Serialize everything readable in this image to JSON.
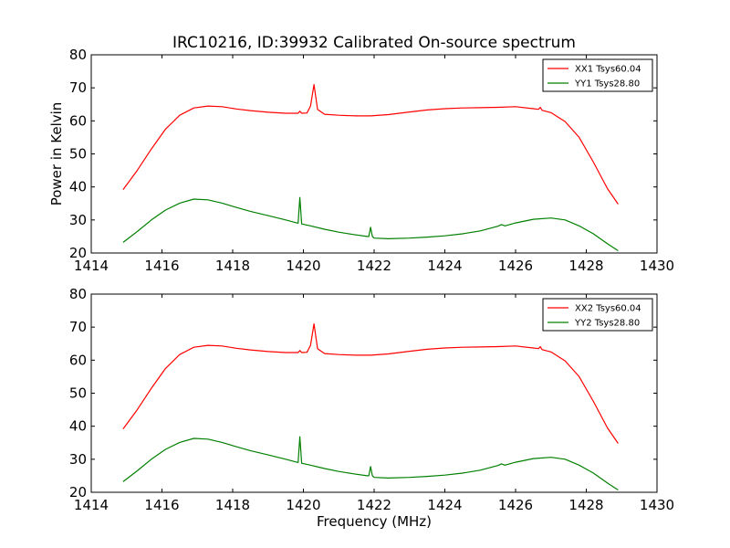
{
  "chart_data": [
    {
      "type": "line",
      "title": "IRC10216, ID:39932 Calibrated On-source spectrum",
      "xlabel": "",
      "ylabel": "Power in Kelvin",
      "xlim": [
        1414,
        1430
      ],
      "ylim": [
        20,
        80
      ],
      "xticks": [
        "1414",
        "1416",
        "1418",
        "1420",
        "1422",
        "1424",
        "1426",
        "1428",
        "1430"
      ],
      "yticks": [
        "20",
        "30",
        "40",
        "50",
        "60",
        "70",
        "80"
      ],
      "grid": false,
      "legend_position": "top-right",
      "series": [
        {
          "name": "XX1 Tsys60.04",
          "color": "#ff0000",
          "x": [
            1414.9,
            1415.3,
            1415.7,
            1416.1,
            1416.5,
            1416.9,
            1417.3,
            1417.7,
            1418.1,
            1418.5,
            1419.0,
            1419.5,
            1419.85,
            1419.9,
            1419.95,
            1420.1,
            1420.2,
            1420.3,
            1420.4,
            1420.6,
            1421.0,
            1421.5,
            1421.9,
            1422.4,
            1423.0,
            1423.5,
            1424.0,
            1424.5,
            1425.0,
            1425.5,
            1426.0,
            1426.5,
            1426.65,
            1426.7,
            1426.75,
            1427.0,
            1427.4,
            1427.8,
            1428.2,
            1428.6,
            1428.9
          ],
          "y": [
            39.2,
            45.0,
            51.5,
            57.5,
            61.7,
            63.9,
            64.5,
            64.3,
            63.6,
            63.1,
            62.6,
            62.3,
            62.3,
            62.9,
            62.3,
            62.4,
            64.5,
            71.0,
            63.5,
            62.0,
            61.7,
            61.5,
            61.5,
            61.9,
            62.7,
            63.3,
            63.7,
            63.9,
            64.0,
            64.1,
            64.3,
            63.7,
            63.5,
            64.1,
            63.2,
            62.5,
            59.8,
            55.0,
            47.5,
            39.5,
            34.8
          ]
        },
        {
          "name": "YY1 Tsys28.80",
          "color": "#008000",
          "x": [
            1414.9,
            1415.3,
            1415.7,
            1416.1,
            1416.5,
            1416.9,
            1417.3,
            1417.7,
            1418.1,
            1418.5,
            1419.0,
            1419.5,
            1419.85,
            1419.9,
            1419.95,
            1420.2,
            1420.6,
            1421.0,
            1421.4,
            1421.8,
            1421.85,
            1421.9,
            1421.95,
            1422.0,
            1422.4,
            1423.0,
            1423.5,
            1424.0,
            1424.5,
            1425.0,
            1425.5,
            1425.6,
            1425.7,
            1426.0,
            1426.5,
            1427.0,
            1427.4,
            1427.8,
            1428.2,
            1428.6,
            1428.9
          ],
          "y": [
            23.2,
            26.5,
            30.0,
            33.0,
            35.1,
            36.3,
            36.1,
            35.1,
            33.8,
            32.6,
            31.3,
            30.0,
            29.0,
            36.8,
            28.8,
            28.2,
            27.2,
            26.3,
            25.6,
            25.0,
            25.0,
            27.8,
            25.0,
            24.5,
            24.3,
            24.5,
            24.8,
            25.2,
            25.8,
            26.7,
            28.1,
            28.6,
            28.2,
            29.1,
            30.2,
            30.6,
            30.0,
            28.2,
            25.8,
            22.8,
            20.7
          ]
        }
      ]
    },
    {
      "type": "line",
      "title": "",
      "xlabel": "Frequency (MHz)",
      "ylabel": "",
      "xlim": [
        1414,
        1430
      ],
      "ylim": [
        20,
        80
      ],
      "xticks": [
        "1414",
        "1416",
        "1418",
        "1420",
        "1422",
        "1424",
        "1426",
        "1428",
        "1430"
      ],
      "yticks": [
        "20",
        "30",
        "40",
        "50",
        "60",
        "70",
        "80"
      ],
      "grid": false,
      "legend_position": "top-right",
      "series": [
        {
          "name": "XX2 Tsys60.04",
          "color": "#ff0000",
          "x": [
            1414.9,
            1415.3,
            1415.7,
            1416.1,
            1416.5,
            1416.9,
            1417.3,
            1417.7,
            1418.1,
            1418.5,
            1419.0,
            1419.5,
            1419.85,
            1419.9,
            1419.95,
            1420.1,
            1420.2,
            1420.3,
            1420.4,
            1420.6,
            1421.0,
            1421.5,
            1421.9,
            1422.4,
            1423.0,
            1423.5,
            1424.0,
            1424.5,
            1425.0,
            1425.5,
            1426.0,
            1426.5,
            1426.65,
            1426.7,
            1426.75,
            1427.0,
            1427.4,
            1427.8,
            1428.2,
            1428.6,
            1428.9
          ],
          "y": [
            39.2,
            45.0,
            51.5,
            57.5,
            61.7,
            63.9,
            64.5,
            64.3,
            63.6,
            63.1,
            62.6,
            62.3,
            62.3,
            62.9,
            62.3,
            62.4,
            64.5,
            71.0,
            63.5,
            62.0,
            61.7,
            61.5,
            61.5,
            61.9,
            62.7,
            63.3,
            63.7,
            63.9,
            64.0,
            64.1,
            64.3,
            63.7,
            63.5,
            64.1,
            63.2,
            62.5,
            59.8,
            55.0,
            47.5,
            39.5,
            34.8
          ]
        },
        {
          "name": "YY2 Tsys28.80",
          "color": "#008000",
          "x": [
            1414.9,
            1415.3,
            1415.7,
            1416.1,
            1416.5,
            1416.9,
            1417.3,
            1417.7,
            1418.1,
            1418.5,
            1419.0,
            1419.5,
            1419.85,
            1419.9,
            1419.95,
            1420.2,
            1420.6,
            1421.0,
            1421.4,
            1421.8,
            1421.85,
            1421.9,
            1421.95,
            1422.0,
            1422.4,
            1423.0,
            1423.5,
            1424.0,
            1424.5,
            1425.0,
            1425.5,
            1425.6,
            1425.7,
            1426.0,
            1426.5,
            1427.0,
            1427.4,
            1427.8,
            1428.2,
            1428.6,
            1428.9
          ],
          "y": [
            23.2,
            26.5,
            30.0,
            33.0,
            35.1,
            36.3,
            36.1,
            35.1,
            33.8,
            32.6,
            31.3,
            30.0,
            29.0,
            36.8,
            28.8,
            28.2,
            27.2,
            26.3,
            25.6,
            25.0,
            25.0,
            27.8,
            25.0,
            24.5,
            24.3,
            24.5,
            24.8,
            25.2,
            25.8,
            26.7,
            28.1,
            28.6,
            28.2,
            29.1,
            30.2,
            30.6,
            30.0,
            28.2,
            25.8,
            22.8,
            20.7
          ]
        }
      ]
    }
  ]
}
